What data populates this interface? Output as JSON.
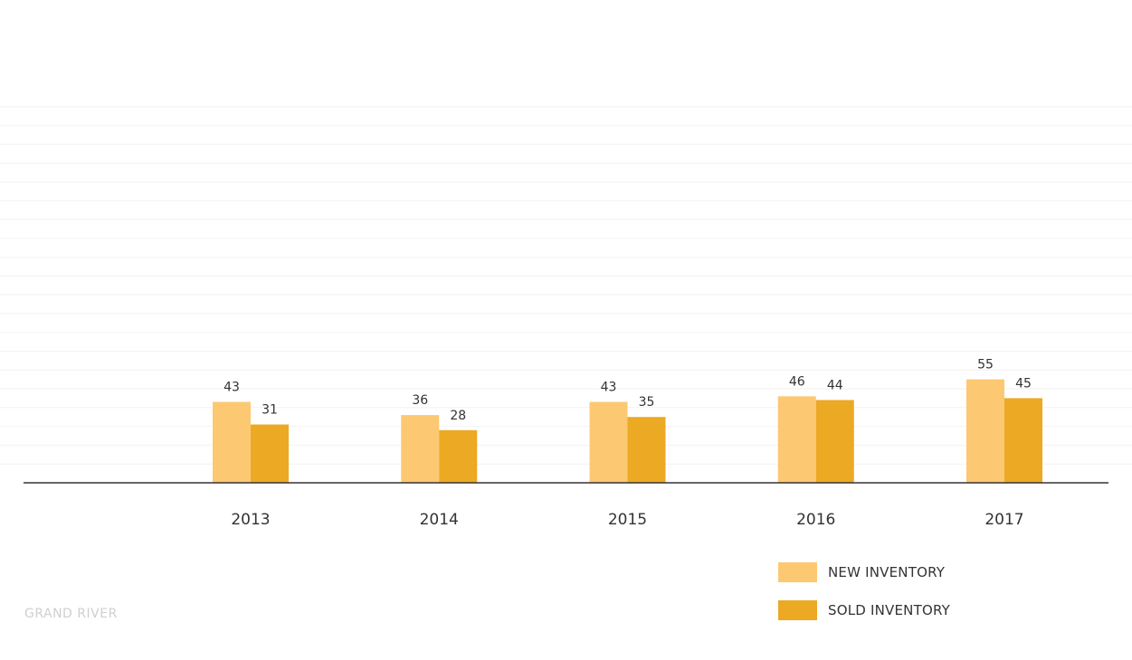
{
  "chart_data": {
    "type": "bar",
    "title": "",
    "xlabel": "",
    "ylabel": "",
    "categories": [
      "2013",
      "2014",
      "2015",
      "2016",
      "2017"
    ],
    "series": [
      {
        "name": "NEW INVENTORY",
        "color": "#FDC872",
        "values": [
          43,
          36,
          43,
          46,
          55
        ]
      },
      {
        "name": "SOLD INVENTORY",
        "color": "#ECA923",
        "values": [
          31,
          28,
          35,
          44,
          45
        ]
      }
    ],
    "ylim": [
      0,
      200
    ],
    "grid": true,
    "legend_position": "bottom-right"
  },
  "source_label": "GRAND RIVER"
}
